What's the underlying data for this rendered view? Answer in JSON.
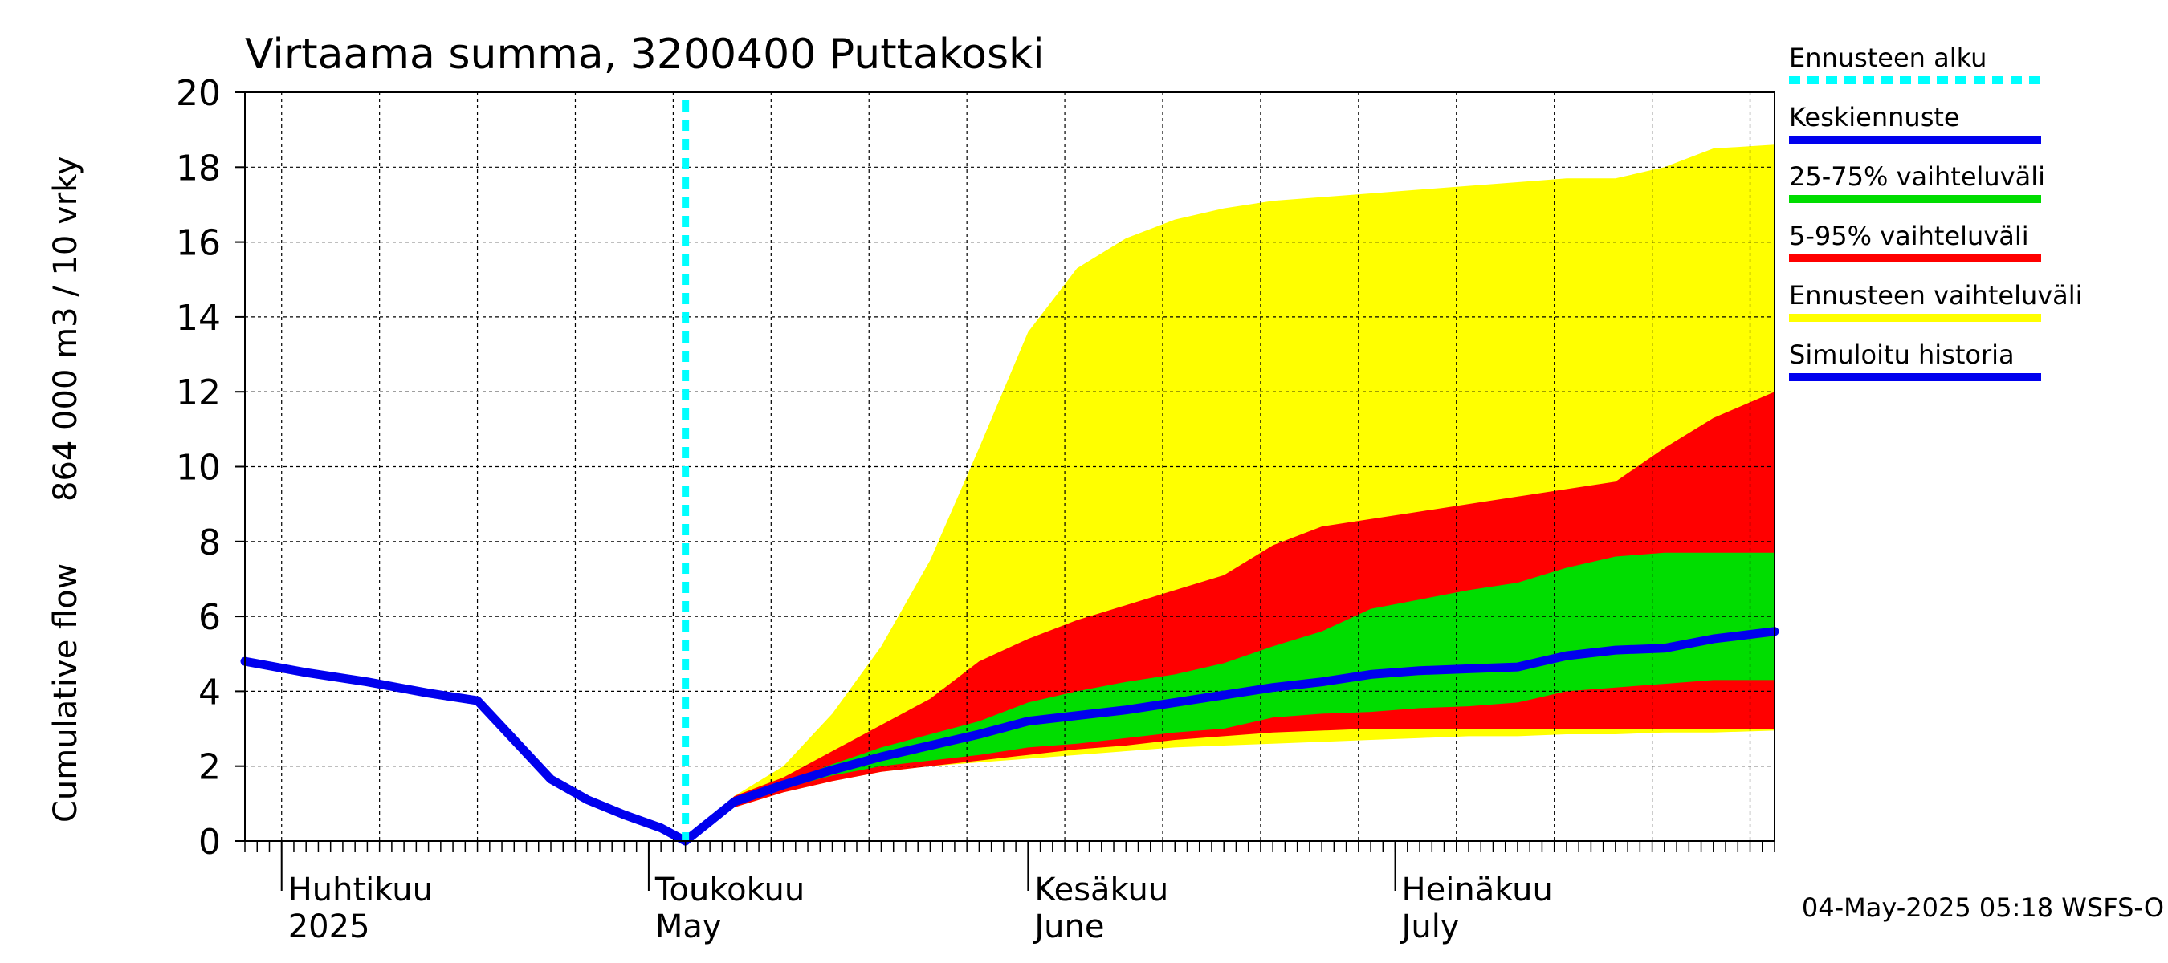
{
  "chart_data": {
    "type": "area",
    "title": "Virtaama summa, 3200400 Puttakoski",
    "ylabel_lines": [
      "Cumulative flow",
      "864 000 m3 / 10 vrky"
    ],
    "ylim": [
      0,
      20
    ],
    "yticks": [
      0,
      2,
      4,
      6,
      8,
      10,
      12,
      14,
      16,
      18,
      20
    ],
    "x_domain": [
      "2025-03-29",
      "2025-08-01"
    ],
    "grid": true,
    "legend_position": "right, outside plot",
    "month_labels": [
      {
        "fi": "Huhtikuu",
        "en": "2025",
        "date": "2025-04-01"
      },
      {
        "fi": "Toukokuu",
        "en": "May",
        "date": "2025-05-01"
      },
      {
        "fi": "Kesäkuu",
        "en": "June",
        "date": "2025-06-01"
      },
      {
        "fi": "Heinäkuu",
        "en": "July",
        "date": "2025-07-01"
      }
    ],
    "forecast_start": "2025-05-04",
    "dates": [
      "2025-05-04",
      "2025-05-08",
      "2025-05-12",
      "2025-05-16",
      "2025-05-20",
      "2025-05-24",
      "2025-05-28",
      "2025-06-01",
      "2025-06-05",
      "2025-06-09",
      "2025-06-13",
      "2025-06-17",
      "2025-06-21",
      "2025-06-25",
      "2025-06-29",
      "2025-07-03",
      "2025-07-07",
      "2025-07-11",
      "2025-07-15",
      "2025-07-19",
      "2025-07-23",
      "2025-07-27",
      "2025-08-01"
    ],
    "bands": [
      {
        "name": "Ennusteen vaihteluväli",
        "color": "#ffff00",
        "low": [
          0,
          0.9,
          1.3,
          1.6,
          1.85,
          2.0,
          2.1,
          2.2,
          2.3,
          2.4,
          2.5,
          2.55,
          2.6,
          2.65,
          2.7,
          2.75,
          2.8,
          2.8,
          2.85,
          2.85,
          2.9,
          2.9,
          2.95
        ],
        "high": [
          0,
          1.2,
          2.0,
          3.4,
          5.2,
          7.5,
          10.5,
          13.6,
          15.3,
          16.1,
          16.6,
          16.9,
          17.1,
          17.2,
          17.3,
          17.4,
          17.5,
          17.6,
          17.7,
          17.7,
          18.0,
          18.5,
          18.6
        ]
      },
      {
        "name": "5-95% vaihteluväli",
        "color": "#ff0000",
        "low": [
          0,
          0.9,
          1.3,
          1.6,
          1.85,
          2.0,
          2.15,
          2.3,
          2.45,
          2.55,
          2.7,
          2.8,
          2.9,
          2.95,
          3.0,
          3.0,
          3.0,
          3.0,
          3.0,
          3.0,
          3.0,
          3.0,
          3.0
        ],
        "high": [
          0,
          1.2,
          1.7,
          2.4,
          3.1,
          3.8,
          4.8,
          5.4,
          5.9,
          6.3,
          6.7,
          7.1,
          7.9,
          8.4,
          8.6,
          8.8,
          9.0,
          9.2,
          9.4,
          9.6,
          10.5,
          11.3,
          12.0
        ]
      },
      {
        "name": "25-75% vaihteluväli",
        "color": "#00dd00",
        "low": [
          0,
          1.0,
          1.4,
          1.75,
          2.0,
          2.15,
          2.3,
          2.5,
          2.6,
          2.75,
          2.9,
          3.0,
          3.3,
          3.4,
          3.45,
          3.55,
          3.6,
          3.7,
          4.0,
          4.1,
          4.2,
          4.3,
          4.3
        ],
        "high": [
          0,
          1.1,
          1.55,
          2.05,
          2.5,
          2.85,
          3.2,
          3.7,
          4.0,
          4.25,
          4.45,
          4.75,
          5.2,
          5.6,
          6.2,
          6.45,
          6.7,
          6.9,
          7.3,
          7.6,
          7.7,
          7.7,
          7.7
        ]
      }
    ],
    "series": [
      {
        "name": "Keskiennuste",
        "color": "#0000ee",
        "x": [
          "2025-05-04",
          "2025-05-08",
          "2025-05-12",
          "2025-05-16",
          "2025-05-20",
          "2025-05-24",
          "2025-05-28",
          "2025-06-01",
          "2025-06-05",
          "2025-06-09",
          "2025-06-13",
          "2025-06-17",
          "2025-06-21",
          "2025-06-25",
          "2025-06-29",
          "2025-07-03",
          "2025-07-07",
          "2025-07-11",
          "2025-07-15",
          "2025-07-19",
          "2025-07-23",
          "2025-07-27",
          "2025-08-01"
        ],
        "y": [
          0,
          1.05,
          1.5,
          1.9,
          2.25,
          2.55,
          2.85,
          3.2,
          3.35,
          3.5,
          3.7,
          3.9,
          4.1,
          4.25,
          4.45,
          4.55,
          4.6,
          4.65,
          4.95,
          5.1,
          5.15,
          5.4,
          5.6
        ]
      },
      {
        "name": "Simuloitu historia",
        "color": "#0000ee",
        "x": [
          "2025-03-29",
          "2025-04-03",
          "2025-04-08",
          "2025-04-13",
          "2025-04-17",
          "2025-04-20",
          "2025-04-23",
          "2025-04-26",
          "2025-04-29",
          "2025-05-02",
          "2025-05-04"
        ],
        "y": [
          4.8,
          4.5,
          4.25,
          3.95,
          3.75,
          2.7,
          1.65,
          1.1,
          0.7,
          0.35,
          0
        ]
      }
    ],
    "legend_entries": [
      {
        "label": "Ennusteen alku",
        "color": "#00ffff",
        "style": "dashed"
      },
      {
        "label": "Keskiennuste",
        "color": "#0000ee",
        "style": "solid"
      },
      {
        "label": "25-75% vaihteluväli",
        "color": "#00dd00",
        "style": "solid"
      },
      {
        "label": "5-95% vaihteluväli",
        "color": "#ff0000",
        "style": "solid"
      },
      {
        "label": "Ennusteen vaihteluväli",
        "color": "#ffff00",
        "style": "solid"
      },
      {
        "label": "Simuloitu historia",
        "color": "#0000ee",
        "style": "solid"
      }
    ]
  },
  "footer": "04-May-2025 05:18 WSFS-O"
}
